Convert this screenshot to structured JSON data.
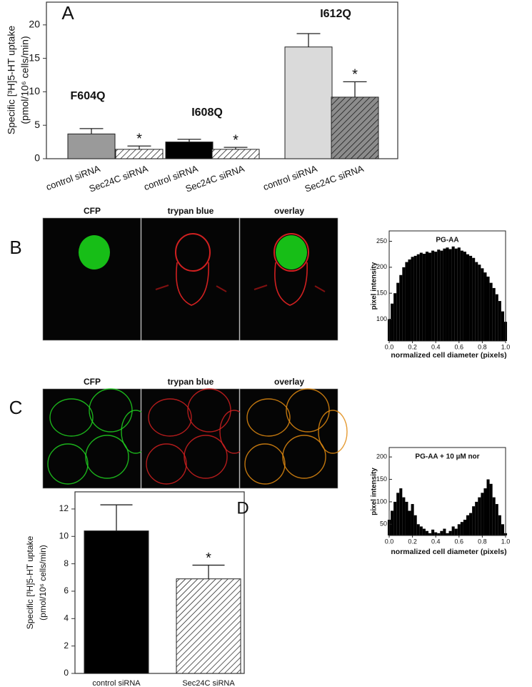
{
  "chart_data": [
    {
      "panel": "A",
      "type": "bar",
      "y_label": [
        "Specific [³H]5-HT uptake",
        "(pmol/10⁶ cells/min)"
      ],
      "categories": [
        "control siRNA",
        "Sec24C siRNA",
        "control siRNA",
        "Sec24C siRNA",
        "control siRNA",
        "Sec24C siRNA"
      ],
      "values": [
        3.7,
        1.4,
        2.5,
        1.4,
        16.7,
        9.2
      ],
      "errors": [
        0.8,
        0.5,
        0.4,
        0.3,
        2.0,
        2.3
      ],
      "colors": [
        "#9a9a9a",
        "#ffffff",
        "#000000",
        "#ffffff",
        "#dadada",
        "#8c8c8c"
      ],
      "hatched": [
        false,
        true,
        false,
        true,
        false,
        true
      ],
      "significance": [
        null,
        "*",
        null,
        "*",
        null,
        "*"
      ],
      "group_labels": [
        "F604Q",
        "I608Q",
        "I612Q"
      ],
      "ylim": [
        0,
        23.4
      ],
      "yticks": [
        0,
        5,
        10,
        15,
        20
      ]
    },
    {
      "type": "histogram",
      "title": "PG-AA",
      "x_label": "normalized cell diameter (pixels)",
      "y_label": "pixel intensity",
      "color": "#000000",
      "x": [
        0,
        0.025,
        0.05,
        0.075,
        0.1,
        0.125,
        0.15,
        0.175,
        0.2,
        0.225,
        0.25,
        0.275,
        0.3,
        0.325,
        0.35,
        0.375,
        0.4,
        0.425,
        0.45,
        0.475,
        0.5,
        0.525,
        0.55,
        0.575,
        0.6,
        0.625,
        0.65,
        0.675,
        0.7,
        0.725,
        0.75,
        0.775,
        0.8,
        0.825,
        0.85,
        0.875,
        0.9,
        0.925,
        0.95,
        0.975,
        1.0
      ],
      "values": [
        100,
        130,
        150,
        170,
        185,
        200,
        210,
        215,
        220,
        222,
        225,
        228,
        226,
        230,
        228,
        232,
        230,
        234,
        232,
        236,
        238,
        235,
        240,
        236,
        238,
        232,
        230,
        225,
        222,
        218,
        210,
        205,
        198,
        190,
        182,
        170,
        160,
        148,
        135,
        115,
        95
      ],
      "xlim": [
        0,
        1
      ],
      "xticks": [
        {
          "value": 0,
          "label": "0.0"
        },
        {
          "value": 0.2,
          "label": "0.2"
        },
        {
          "value": 0.4,
          "label": "0.4"
        },
        {
          "value": 0.6,
          "label": "0.6"
        },
        {
          "value": 0.8,
          "label": "0.8"
        },
        {
          "value": 1,
          "label": "1.0"
        }
      ],
      "ylim": [
        58,
        270
      ],
      "yticks": [
        100,
        150,
        200,
        250
      ]
    },
    {
      "type": "histogram",
      "title": "PG-AA + 10 µM nor",
      "x_label": "normalized cell diameter (pixels)",
      "y_label": "pixel intensity",
      "color": "#000000",
      "x": [
        0,
        0.025,
        0.05,
        0.075,
        0.1,
        0.125,
        0.15,
        0.175,
        0.2,
        0.225,
        0.25,
        0.275,
        0.3,
        0.325,
        0.35,
        0.375,
        0.4,
        0.425,
        0.45,
        0.475,
        0.5,
        0.525,
        0.55,
        0.575,
        0.6,
        0.625,
        0.65,
        0.675,
        0.7,
        0.725,
        0.75,
        0.775,
        0.8,
        0.825,
        0.85,
        0.875,
        0.9,
        0.925,
        0.95,
        0.975,
        1.0
      ],
      "values": [
        60,
        80,
        100,
        120,
        130,
        110,
        100,
        80,
        95,
        70,
        50,
        45,
        40,
        35,
        30,
        38,
        32,
        30,
        35,
        40,
        30,
        35,
        45,
        40,
        50,
        55,
        60,
        70,
        75,
        90,
        100,
        110,
        120,
        130,
        150,
        140,
        110,
        95,
        70,
        50,
        30
      ],
      "xlim": [
        0,
        1
      ],
      "xticks": [
        {
          "value": 0,
          "label": "0.0"
        },
        {
          "value": 0.2,
          "label": "0.2"
        },
        {
          "value": 0.4,
          "label": "0.4"
        },
        {
          "value": 0.6,
          "label": "0.6"
        },
        {
          "value": 0.8,
          "label": "0.8"
        },
        {
          "value": 1,
          "label": "1.0"
        }
      ],
      "ylim": [
        25,
        221
      ],
      "yticks": [
        50,
        100,
        150,
        200
      ]
    },
    {
      "panel": "D",
      "type": "bar",
      "y_label": [
        "Specific [³H]5-HT uptake",
        "(pmol/10⁶ cells/min)"
      ],
      "categories": [
        "control siRNA",
        "Sec24C siRNA"
      ],
      "values": [
        10.4,
        6.9
      ],
      "errors": [
        1.9,
        1.0
      ],
      "colors": [
        "#000000",
        "#ffffff"
      ],
      "hatched": [
        false,
        true
      ],
      "significance": [
        null,
        "*"
      ],
      "ylim": [
        0,
        13.25
      ],
      "yticks": [
        0,
        2,
        4,
        6,
        8,
        10,
        12
      ]
    }
  ],
  "image_panels": [
    {
      "panel": "B",
      "labels": [
        "CFP",
        "trypan blue",
        "overlay"
      ]
    },
    {
      "panel": "C",
      "labels": [
        "CFP",
        "trypan blue",
        "overlay"
      ]
    }
  ]
}
